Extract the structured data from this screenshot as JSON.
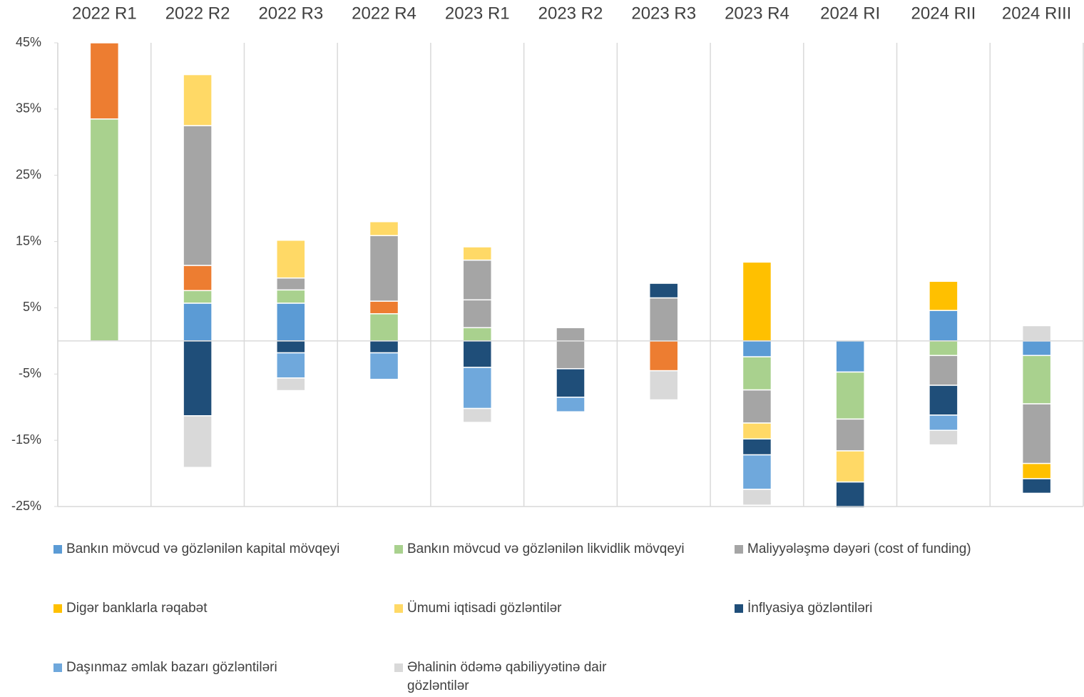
{
  "chart_data": {
    "type": "stacked_bar",
    "categories": [
      "2022 R1",
      "2022 R2",
      "2022 R3",
      "2022 R4",
      "2023 R1",
      "2023 R2",
      "2023 R3",
      "2023 R4",
      "2024 RI",
      "2024 RII",
      "2024 RIII"
    ],
    "ylim": [
      -25,
      45
    ],
    "yticks": [
      {
        "value": 45,
        "label": "45%"
      },
      {
        "value": 35,
        "label": "35%"
      },
      {
        "value": 25,
        "label": "25%"
      },
      {
        "value": 15,
        "label": "15%"
      },
      {
        "value": 5,
        "label": "5%"
      },
      {
        "value": -5,
        "label": "-5%"
      },
      {
        "value": -15,
        "label": "-15%"
      },
      {
        "value": -25,
        "label": "-25%"
      }
    ],
    "series": [
      {
        "name": "Bankın mövcud və gözlənilən kapital mövqeyi",
        "color": "#5b9bd5",
        "values": [
          null,
          5.7,
          5.7,
          null,
          null,
          null,
          null,
          -2.4,
          -4.7,
          4.6,
          -2.2
        ]
      },
      {
        "name": "Bankın mövcud və gözlənilən likvidlik mövqeyi",
        "color": "#a9d18e",
        "values": [
          33.5,
          1.9,
          2.0,
          4.1,
          2.0,
          null,
          null,
          -5.0,
          -7.1,
          -2.2,
          -7.3
        ]
      },
      {
        "color": "#ed7d31",
        "values": [
          11.5,
          3.8,
          null,
          1.9,
          null,
          null,
          -4.5,
          null,
          null,
          null,
          null
        ]
      },
      {
        "name": "Maliyyələşmə dəyəri (cost of funding)",
        "color": "#a5a5a5",
        "values": [
          null,
          21.1,
          1.8,
          9.9,
          4.2,
          -4.2,
          6.5,
          -5.0,
          -4.8,
          -4.5,
          -9.0
        ]
      },
      {
        "color": "#a5a5a5",
        "values": [
          null,
          null,
          null,
          null,
          6.0,
          2.0,
          null,
          null,
          null,
          null,
          null
        ]
      },
      {
        "name": "Digər banklarla rəqabət",
        "color": "#ffc000",
        "values": [
          null,
          null,
          null,
          null,
          null,
          null,
          null,
          11.9,
          null,
          4.4,
          -2.3
        ]
      },
      {
        "name": "Ümumi iqtisadi gözləntilər",
        "color": "#ffd966",
        "values": [
          null,
          7.7,
          5.7,
          2.1,
          2.0,
          null,
          null,
          -2.4,
          -4.7,
          null,
          null
        ]
      },
      {
        "name": "İnflyasiya gözləntiləri",
        "color": "#1f4e79",
        "values": [
          null,
          -11.3,
          -1.8,
          -1.8,
          -4.0,
          -4.3,
          2.2,
          -2.4,
          -3.9,
          -4.5,
          -2.2
        ]
      },
      {
        "name": "Daşınmaz əmlak bazarı gözləntiləri",
        "color": "#6fa8dc",
        "values": [
          null,
          null,
          -3.8,
          -4.0,
          -6.2,
          -2.2,
          null,
          -5.2,
          null,
          -2.3,
          null
        ]
      },
      {
        "name": "Əhalinin ödəmə qabiliyyətinə dair gözləntilər",
        "color": "#d9d9d9",
        "values": [
          null,
          -7.8,
          -1.9,
          null,
          -2.1,
          null,
          -4.4,
          -2.4,
          null,
          -2.2,
          2.3
        ]
      }
    ]
  }
}
